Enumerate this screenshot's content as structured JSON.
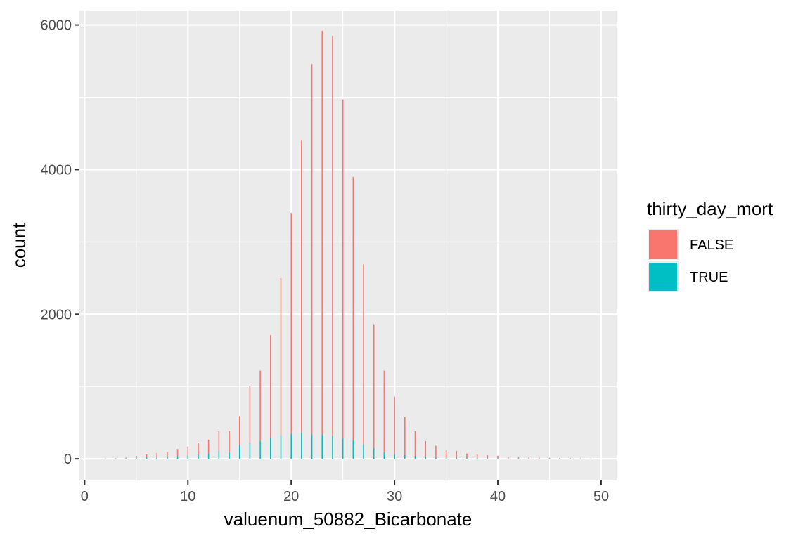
{
  "chart_data": {
    "type": "bar",
    "stacked": true,
    "xlabel": "valuenum_50882_Bicarbonate",
    "ylabel": "count",
    "xlim": [
      -0.5,
      51.5
    ],
    "ylim": [
      -300,
      6200
    ],
    "x_ticks": [
      0,
      10,
      20,
      30,
      40,
      50
    ],
    "x_tick_labels": [
      "0",
      "10",
      "20",
      "30",
      "40",
      "50"
    ],
    "y_ticks": [
      0,
      2000,
      4000,
      6000
    ],
    "y_tick_labels": [
      "0",
      "2000",
      "4000",
      "6000"
    ],
    "grid": true,
    "legend": {
      "title": "thirty_day_mort",
      "position": "right",
      "entries": [
        "FALSE",
        "TRUE"
      ]
    },
    "colors": {
      "FALSE": "#F8766D",
      "TRUE": "#00BFC4",
      "panel": "#EBEBEB",
      "grid": "#FFFFFF"
    },
    "x": [
      2,
      3,
      4,
      5,
      6,
      7,
      8,
      9,
      10,
      11,
      12,
      13,
      14,
      15,
      16,
      17,
      18,
      19,
      20,
      21,
      22,
      23,
      24,
      25,
      26,
      27,
      28,
      29,
      30,
      31,
      32,
      33,
      34,
      35,
      36,
      37,
      38,
      39,
      40,
      41,
      42,
      43,
      44,
      45,
      46,
      47,
      48,
      49
    ],
    "series": [
      {
        "name": "FALSE",
        "values": [
          4,
          6,
          10,
          25,
          40,
          55,
          65,
          100,
          125,
          155,
          190,
          270,
          295,
          400,
          790,
          970,
          1420,
          2170,
          3050,
          4040,
          5120,
          5580,
          5530,
          4690,
          3640,
          2490,
          1710,
          1130,
          790,
          530,
          340,
          215,
          160,
          100,
          95,
          60,
          45,
          40,
          35,
          20,
          14,
          12,
          12,
          10,
          8,
          8,
          6,
          4
        ]
      },
      {
        "name": "TRUE",
        "values": [
          2,
          3,
          5,
          15,
          20,
          25,
          30,
          35,
          45,
          60,
          75,
          110,
          90,
          190,
          220,
          250,
          290,
          330,
          350,
          360,
          340,
          340,
          320,
          280,
          260,
          200,
          150,
          90,
          70,
          50,
          40,
          30,
          20,
          15,
          15,
          12,
          10,
          8,
          8,
          6,
          5,
          4,
          4,
          3,
          3,
          2,
          2,
          2
        ]
      }
    ]
  }
}
